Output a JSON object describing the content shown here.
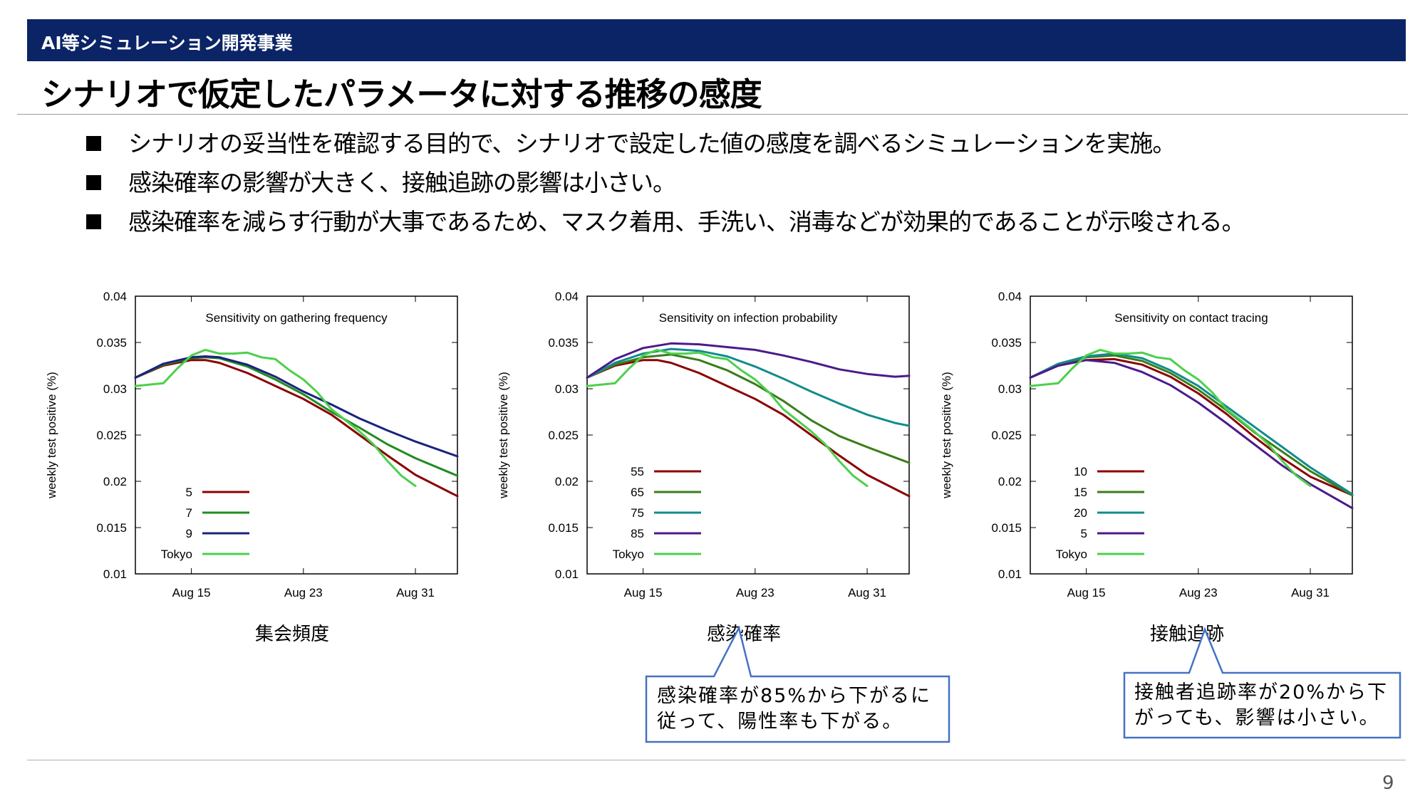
{
  "header": {
    "section_label": "AI等シミュレーション開発事業"
  },
  "title": "シナリオで仮定したパラメータに対する推移の感度",
  "bullets": [
    "シナリオの妥当性を確認する目的で、シナリオで設定した値の感度を調べるシミュレーションを実施。",
    "感染確率の影響が大きく、接触追跡の影響は小さい。",
    "感染確率を減らす行動が大事であるため、マスク着用、手洗い、消毒などが効果的であることが示唆される。"
  ],
  "chart_data": [
    {
      "type": "line",
      "title": "Sensitivity on gathering frequency",
      "caption": "集会頻度",
      "ylabel": "weekly test positive (%)",
      "ylim": [
        0.01,
        0.04
      ],
      "xlim": [
        0,
        23
      ],
      "yticks": [
        "0.01",
        "0.015",
        "0.02",
        "0.025",
        "0.03",
        "0.035",
        "0.04"
      ],
      "yticks_values": [
        0.01,
        0.015,
        0.02,
        0.025,
        0.03,
        0.035,
        0.04
      ],
      "xticks": [
        "Aug 15",
        "Aug 23",
        "Aug 31"
      ],
      "xticks_values": [
        4,
        12,
        20
      ],
      "grid": false,
      "legend_position": "bottom-left",
      "series": [
        {
          "name": "5",
          "color": "#8b0000",
          "x": [
            0,
            2,
            4,
            5,
            6,
            8,
            10,
            12,
            14,
            16,
            18,
            20,
            23
          ],
          "values": [
            0.0312,
            0.0325,
            0.0331,
            0.0331,
            0.0328,
            0.0317,
            0.0303,
            0.0289,
            0.0272,
            0.025,
            0.0228,
            0.0207,
            0.0184
          ]
        },
        {
          "name": "7",
          "color": "#228b22",
          "x": [
            0,
            2,
            4,
            5,
            6,
            8,
            10,
            12,
            14,
            16,
            18,
            20,
            23
          ],
          "values": [
            0.0312,
            0.0326,
            0.0333,
            0.0334,
            0.0333,
            0.0324,
            0.031,
            0.0294,
            0.0275,
            0.0258,
            0.024,
            0.0225,
            0.0206
          ]
        },
        {
          "name": "9",
          "color": "#1a237e",
          "x": [
            0,
            2,
            4,
            5,
            6,
            8,
            10,
            12,
            14,
            16,
            18,
            20,
            23
          ],
          "values": [
            0.0312,
            0.0327,
            0.0334,
            0.0335,
            0.0334,
            0.0326,
            0.0313,
            0.0297,
            0.0283,
            0.0268,
            0.0255,
            0.0243,
            0.0227
          ]
        },
        {
          "name": "Tokyo",
          "color": "#4cd04c",
          "x": [
            0,
            2,
            3,
            4,
            5,
            6,
            7,
            8,
            9,
            10,
            11,
            12,
            13,
            14,
            15,
            16,
            17,
            18,
            19,
            20
          ],
          "values": [
            0.0303,
            0.0306,
            0.0322,
            0.0336,
            0.0342,
            0.0338,
            0.0338,
            0.0339,
            0.0334,
            0.0332,
            0.032,
            0.031,
            0.0296,
            0.0278,
            0.0266,
            0.0254,
            0.024,
            0.0222,
            0.0206,
            0.0195
          ]
        }
      ]
    },
    {
      "type": "line",
      "title": "Sensitivity on infection probability",
      "caption": "感染確率",
      "ylabel": "weekly test positive (%)",
      "ylim": [
        0.01,
        0.04
      ],
      "xlim": [
        0,
        23
      ],
      "yticks": [
        "0.01",
        "0.015",
        "0.02",
        "0.025",
        "0.03",
        "0.035",
        "0.04"
      ],
      "yticks_values": [
        0.01,
        0.015,
        0.02,
        0.025,
        0.03,
        0.035,
        0.04
      ],
      "xticks": [
        "Aug 15",
        "Aug 23",
        "Aug 31"
      ],
      "xticks_values": [
        4,
        12,
        20
      ],
      "grid": false,
      "legend_position": "bottom-left",
      "series": [
        {
          "name": "55",
          "color": "#8b0000",
          "x": [
            0,
            2,
            4,
            5,
            6,
            8,
            10,
            12,
            14,
            16,
            18,
            20,
            23
          ],
          "values": [
            0.0312,
            0.0325,
            0.0331,
            0.0331,
            0.0328,
            0.0317,
            0.0303,
            0.0289,
            0.0272,
            0.025,
            0.0228,
            0.0207,
            0.0184
          ]
        },
        {
          "name": "65",
          "color": "#3a7d1a",
          "x": [
            0,
            2,
            4,
            6,
            8,
            10,
            12,
            14,
            16,
            18,
            20,
            23
          ],
          "values": [
            0.0312,
            0.0326,
            0.0334,
            0.0337,
            0.0331,
            0.032,
            0.0305,
            0.0287,
            0.0266,
            0.0249,
            0.0237,
            0.022
          ]
        },
        {
          "name": "75",
          "color": "#128c8c",
          "x": [
            0,
            2,
            4,
            6,
            8,
            10,
            12,
            14,
            16,
            18,
            20,
            22,
            23
          ],
          "values": [
            0.0312,
            0.0328,
            0.0338,
            0.0343,
            0.0341,
            0.0335,
            0.0324,
            0.0311,
            0.0297,
            0.0284,
            0.0272,
            0.0263,
            0.026
          ]
        },
        {
          "name": "85",
          "color": "#4b1a8c",
          "x": [
            0,
            2,
            4,
            6,
            8,
            10,
            12,
            14,
            16,
            18,
            20,
            22,
            23
          ],
          "values": [
            0.0312,
            0.0332,
            0.0344,
            0.0349,
            0.0348,
            0.0345,
            0.0342,
            0.0336,
            0.0329,
            0.0321,
            0.0316,
            0.0313,
            0.0314
          ]
        },
        {
          "name": "Tokyo",
          "color": "#4cd04c",
          "x": [
            0,
            2,
            3,
            4,
            5,
            6,
            7,
            8,
            9,
            10,
            11,
            12,
            13,
            14,
            15,
            16,
            17,
            18,
            19,
            20
          ],
          "values": [
            0.0303,
            0.0306,
            0.0322,
            0.0336,
            0.0342,
            0.0338,
            0.0338,
            0.0339,
            0.0334,
            0.0332,
            0.032,
            0.031,
            0.0296,
            0.0278,
            0.0266,
            0.0254,
            0.024,
            0.0222,
            0.0206,
            0.0195
          ]
        }
      ]
    },
    {
      "type": "line",
      "title": "Sensitivity on contact tracing",
      "caption": "接触追跡",
      "ylabel": "weekly test positive (%)",
      "ylim": [
        0.01,
        0.04
      ],
      "xlim": [
        0,
        23
      ],
      "yticks": [
        "0.01",
        "0.015",
        "0.02",
        "0.025",
        "0.03",
        "0.035",
        "0.04"
      ],
      "yticks_values": [
        0.01,
        0.015,
        0.02,
        0.025,
        0.03,
        0.035,
        0.04
      ],
      "xticks": [
        "Aug 15",
        "Aug 23",
        "Aug 31"
      ],
      "xticks_values": [
        4,
        12,
        20
      ],
      "grid": false,
      "legend_position": "bottom-left",
      "series": [
        {
          "name": "10",
          "color": "#8b0000",
          "x": [
            0,
            2,
            4,
            6,
            8,
            10,
            12,
            14,
            16,
            18,
            20,
            23
          ],
          "values": [
            0.0312,
            0.0325,
            0.0331,
            0.0332,
            0.0326,
            0.0313,
            0.0295,
            0.0273,
            0.0248,
            0.0225,
            0.0205,
            0.0185
          ]
        },
        {
          "name": "15",
          "color": "#3a7d1a",
          "x": [
            0,
            2,
            4,
            6,
            8,
            10,
            12,
            14,
            16,
            18,
            20,
            23
          ],
          "values": [
            0.0312,
            0.0326,
            0.0334,
            0.0336,
            0.033,
            0.0317,
            0.0299,
            0.0277,
            0.0253,
            0.0232,
            0.0211,
            0.0185
          ]
        },
        {
          "name": "20",
          "color": "#128c8c",
          "x": [
            0,
            2,
            4,
            6,
            8,
            10,
            12,
            14,
            16,
            18,
            20,
            23
          ],
          "values": [
            0.0312,
            0.0327,
            0.0335,
            0.0338,
            0.0333,
            0.032,
            0.0303,
            0.0281,
            0.0259,
            0.0237,
            0.0215,
            0.0186
          ]
        },
        {
          "name": "5",
          "color": "#4b1a8c",
          "x": [
            0,
            2,
            4,
            6,
            8,
            10,
            12,
            14,
            16,
            18,
            20,
            23
          ],
          "values": [
            0.0312,
            0.0325,
            0.0331,
            0.0328,
            0.0318,
            0.0304,
            0.0285,
            0.0263,
            0.024,
            0.0217,
            0.0197,
            0.0171
          ]
        },
        {
          "name": "Tokyo",
          "color": "#4cd04c",
          "x": [
            0,
            2,
            3,
            4,
            5,
            6,
            7,
            8,
            9,
            10,
            11,
            12,
            13,
            14,
            15,
            16,
            17,
            18,
            19,
            20
          ],
          "values": [
            0.0303,
            0.0306,
            0.0322,
            0.0336,
            0.0342,
            0.0338,
            0.0338,
            0.0339,
            0.0334,
            0.0332,
            0.032,
            0.031,
            0.0296,
            0.0278,
            0.0266,
            0.0254,
            0.024,
            0.0222,
            0.0206,
            0.0195
          ]
        }
      ]
    }
  ],
  "callouts": [
    {
      "lines": [
        "感染確率が85%から下がるに",
        "従って、陽性率も下がる。"
      ],
      "border_color": "#4472c4"
    },
    {
      "lines": [
        "接触者追跡率が20%から下",
        "がっても、影響は小さい。"
      ],
      "border_color": "#4472c4"
    }
  ],
  "footer": {
    "page_number": "9"
  }
}
